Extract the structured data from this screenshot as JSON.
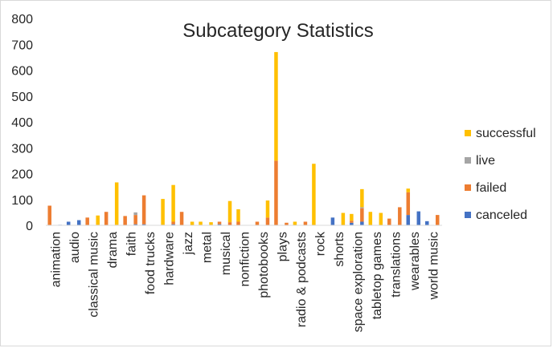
{
  "chart_data": {
    "type": "bar",
    "title": "Subcategory Statistics",
    "xlabel": "",
    "ylabel": "",
    "ylim": [
      0,
      800
    ],
    "yticks": [
      0,
      100,
      200,
      300,
      400,
      500,
      600,
      700,
      800
    ],
    "grid": false,
    "legend_position": "right",
    "categories": [
      "animation",
      "audio",
      "classical music",
      "drama",
      "faith",
      "food trucks",
      "hardware",
      "jazz",
      "metal",
      "musical",
      "nonfiction",
      "photobooks",
      "plays",
      "radio & podcasts",
      "rock",
      "shorts",
      "space exploration",
      "tabletop games",
      "translations",
      "wearables",
      "world music"
    ],
    "series": [
      {
        "name": "canceled",
        "color": "#4472C4",
        "values": [
          0,
          14,
          0,
          0,
          0,
          4,
          2,
          0,
          0,
          4,
          0,
          0,
          0,
          0,
          0,
          30,
          10,
          0,
          0,
          40,
          16
        ],
        "values_b": [
          2,
          20,
          0,
          0,
          4,
          0,
          4,
          0,
          0,
          0,
          0,
          0,
          0,
          0,
          0,
          0,
          14,
          0,
          0,
          54,
          0
        ]
      },
      {
        "name": "failed",
        "color": "#ED7D31",
        "values": [
          76,
          0,
          30,
          52,
          36,
          112,
          0,
          52,
          2,
          10,
          14,
          14,
          250,
          0,
          0,
          0,
          8,
          0,
          26,
          88,
          0
        ],
        "values_b": [
          0,
          0,
          2,
          2,
          36,
          0,
          10,
          0,
          2,
          12,
          0,
          30,
          10,
          14,
          0,
          0,
          52,
          0,
          70,
          0,
          40
        ]
      },
      {
        "name": "live",
        "color": "#A5A5A5",
        "values": [
          0,
          0,
          0,
          0,
          0,
          0,
          0,
          0,
          0,
          0,
          0,
          0,
          0,
          0,
          0,
          0,
          0,
          0,
          0,
          0,
          0
        ],
        "values_b": [
          0,
          0,
          0,
          0,
          10,
          0,
          0,
          0,
          0,
          0,
          0,
          0,
          0,
          0,
          0,
          0,
          4,
          0,
          0,
          0,
          0
        ]
      },
      {
        "name": "successful",
        "color": "#FFC000",
        "values": [
          0,
          0,
          0,
          0,
          0,
          0,
          100,
          0,
          12,
          0,
          48,
          0,
          420,
          14,
          238,
          0,
          26,
          52,
          0,
          14,
          0
        ],
        "values_b": [
          0,
          0,
          36,
          164,
          0,
          0,
          142,
          14,
          10,
          82,
          0,
          66,
          0,
          0,
          0,
          48,
          70,
          48,
          0,
          0,
          0
        ]
      }
    ]
  }
}
